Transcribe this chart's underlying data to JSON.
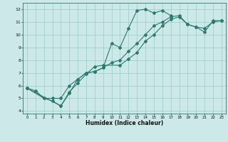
{
  "title": "",
  "xlabel": "Humidex (Indice chaleur)",
  "bg_color": "#cce8e8",
  "grid_color": "#99cccc",
  "line_color": "#2d7a6e",
  "xlim": [
    -0.5,
    23.5
  ],
  "ylim": [
    3.8,
    12.5
  ],
  "xticks": [
    0,
    1,
    2,
    3,
    4,
    5,
    6,
    7,
    8,
    9,
    10,
    11,
    12,
    13,
    14,
    15,
    16,
    17,
    18,
    19,
    20,
    21,
    22,
    23
  ],
  "yticks": [
    4,
    5,
    6,
    7,
    8,
    9,
    10,
    11,
    12
  ],
  "line1_x": [
    0,
    1,
    2,
    3,
    4,
    5,
    6,
    7,
    8,
    9,
    10,
    11,
    12,
    13,
    14,
    15,
    16,
    17
  ],
  "line1_y": [
    5.8,
    5.6,
    5.0,
    4.8,
    4.4,
    5.4,
    6.5,
    7.0,
    7.1,
    7.4,
    9.3,
    9.0,
    10.5,
    11.9,
    12.0,
    11.7,
    11.9,
    11.5
  ],
  "line2_x": [
    0,
    2,
    3,
    4,
    5,
    6,
    7,
    8,
    9,
    10,
    11,
    12,
    13,
    14,
    15,
    16,
    17,
    18,
    19,
    20,
    21,
    22,
    23
  ],
  "line2_y": [
    5.8,
    5.0,
    5.0,
    5.0,
    6.0,
    6.5,
    7.0,
    7.1,
    7.4,
    7.8,
    8.0,
    8.7,
    9.3,
    10.0,
    10.7,
    11.0,
    11.4,
    11.5,
    10.8,
    10.6,
    10.2,
    11.1,
    11.1
  ],
  "line3_x": [
    0,
    4,
    5,
    6,
    7,
    8,
    9,
    11,
    12,
    13,
    14,
    15,
    16,
    17,
    18,
    19,
    20,
    21,
    22,
    23
  ],
  "line3_y": [
    5.8,
    4.4,
    5.5,
    6.2,
    6.9,
    7.5,
    7.6,
    7.6,
    8.1,
    8.6,
    9.5,
    10.0,
    10.7,
    11.2,
    11.4,
    10.8,
    10.6,
    10.5,
    11.0,
    11.1
  ]
}
